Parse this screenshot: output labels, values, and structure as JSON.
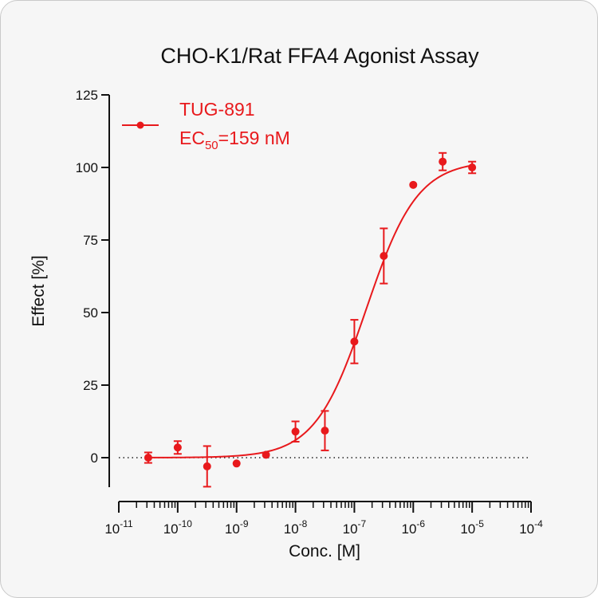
{
  "chart_data": {
    "type": "scatter",
    "title": "CHO-K1/Rat FFA4 Agonist Assay",
    "xlabel": "Conc. [M]",
    "ylabel": "Effect  [%]",
    "x_scale": "log",
    "xlim": [
      1e-11,
      0.0001
    ],
    "ylim": [
      -10,
      125
    ],
    "x_ticks": [
      {
        "base": "10",
        "exp": "-11"
      },
      {
        "base": "10",
        "exp": "-10"
      },
      {
        "base": "10",
        "exp": "-9"
      },
      {
        "base": "10",
        "exp": "-8"
      },
      {
        "base": "10",
        "exp": "-7"
      },
      {
        "base": "10",
        "exp": "-6"
      },
      {
        "base": "10",
        "exp": "-5"
      },
      {
        "base": "10",
        "exp": "-4"
      }
    ],
    "y_ticks": [
      "0",
      "25",
      "50",
      "75",
      "100",
      "125"
    ],
    "y_tick_values": [
      0,
      25,
      50,
      75,
      100,
      125
    ],
    "color": "#e8191c",
    "legend": {
      "position": "top-left",
      "series_name": "TUG-891",
      "ec50_prefix": "EC",
      "ec50_subscript": "50",
      "ec50_suffix": "=159 nM"
    },
    "series": [
      {
        "name": "TUG-891",
        "points": [
          {
            "x": 3.16e-11,
            "y": 0.0,
            "err": 1.8
          },
          {
            "x": 1e-10,
            "y": 3.5,
            "err": 2.2
          },
          {
            "x": 3.16e-10,
            "y": -3.0,
            "err": 7.0
          },
          {
            "x": 1e-09,
            "y": -2.0,
            "err": 0
          },
          {
            "x": 3.16e-09,
            "y": 1.0,
            "err": 0
          },
          {
            "x": 1e-08,
            "y": 9.0,
            "err": 3.5
          },
          {
            "x": 3.16e-08,
            "y": 9.3,
            "err": 6.8
          },
          {
            "x": 1e-07,
            "y": 40.0,
            "err": 7.5
          },
          {
            "x": 3.16e-07,
            "y": 69.5,
            "err": 9.5
          },
          {
            "x": 1e-06,
            "y": 94.0,
            "err": 0
          },
          {
            "x": 3.16e-06,
            "y": 102.0,
            "err": 3.0
          },
          {
            "x": 1e-05,
            "y": 100.0,
            "err": 2.0
          }
        ],
        "fit": {
          "model": "four-parameter logistic",
          "bottom": 0,
          "top": 102.3,
          "ec50": 1.59e-07,
          "hill": 1.0
        }
      }
    ],
    "reference_line": {
      "y": 0,
      "style": "dotted"
    }
  }
}
